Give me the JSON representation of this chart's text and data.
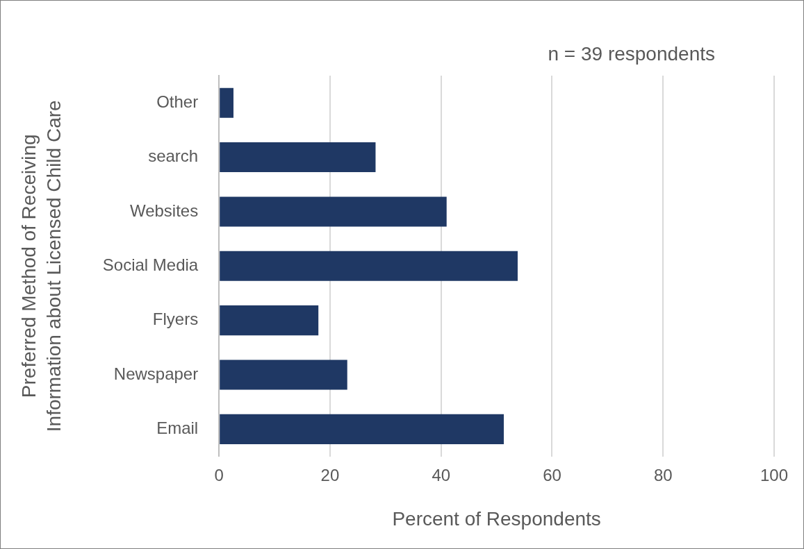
{
  "chart_data": {
    "type": "bar",
    "orientation": "horizontal",
    "categories": [
      "Other",
      "search",
      "Websites",
      "Social Media",
      "Flyers",
      "Newspaper",
      "Email"
    ],
    "values": [
      2.6,
      28.2,
      41,
      53.8,
      17.9,
      23.1,
      51.3
    ],
    "color": "#1f3864",
    "xlabel": "Percent of Respondents",
    "ylabel": "Preferred Method of Receiving\nInformation about Licensed Child Care",
    "annotations": [
      "n = 39 respondents"
    ],
    "xlim": [
      0,
      100
    ],
    "xticks": [
      0,
      20,
      40,
      60,
      80,
      100
    ],
    "grid": "x",
    "legend": false
  }
}
